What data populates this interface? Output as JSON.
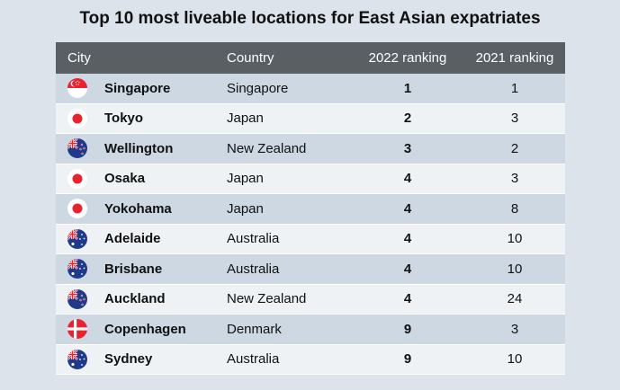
{
  "title": "Top 10 most liveable locations for East Asian expatriates",
  "headers": {
    "city": "City",
    "country": "Country",
    "rank2022": "2022 ranking",
    "rank2021": "2021 ranking"
  },
  "rows": [
    {
      "city": "Singapore",
      "country": "Singapore",
      "rank2022": "1",
      "rank2021": "1",
      "flag": "singapore-flag-icon"
    },
    {
      "city": "Tokyo",
      "country": "Japan",
      "rank2022": "2",
      "rank2021": "3",
      "flag": "japan-flag-icon"
    },
    {
      "city": "Wellington",
      "country": "New Zealand",
      "rank2022": "3",
      "rank2021": "2",
      "flag": "new-zealand-flag-icon"
    },
    {
      "city": "Osaka",
      "country": "Japan",
      "rank2022": "4",
      "rank2021": "3",
      "flag": "japan-flag-icon"
    },
    {
      "city": "Yokohama",
      "country": "Japan",
      "rank2022": "4",
      "rank2021": "8",
      "flag": "japan-flag-icon"
    },
    {
      "city": "Adelaide",
      "country": "Australia",
      "rank2022": "4",
      "rank2021": "10",
      "flag": "australia-flag-icon"
    },
    {
      "city": "Brisbane",
      "country": "Australia",
      "rank2022": "4",
      "rank2021": "10",
      "flag": "australia-flag-icon"
    },
    {
      "city": "Auckland",
      "country": "New Zealand",
      "rank2022": "4",
      "rank2021": "24",
      "flag": "new-zealand-flag-icon"
    },
    {
      "city": "Copenhagen",
      "country": "Denmark",
      "rank2022": "9",
      "rank2021": "3",
      "flag": "denmark-flag-icon"
    },
    {
      "city": "Sydney",
      "country": "Australia",
      "rank2022": "9",
      "rank2021": "10",
      "flag": "australia-flag-icon"
    }
  ],
  "colors": {
    "background": "#dce3ea",
    "header": "#5a5f64",
    "row_alt": "#cdd8e3",
    "row_plain": "#eef2f5"
  }
}
